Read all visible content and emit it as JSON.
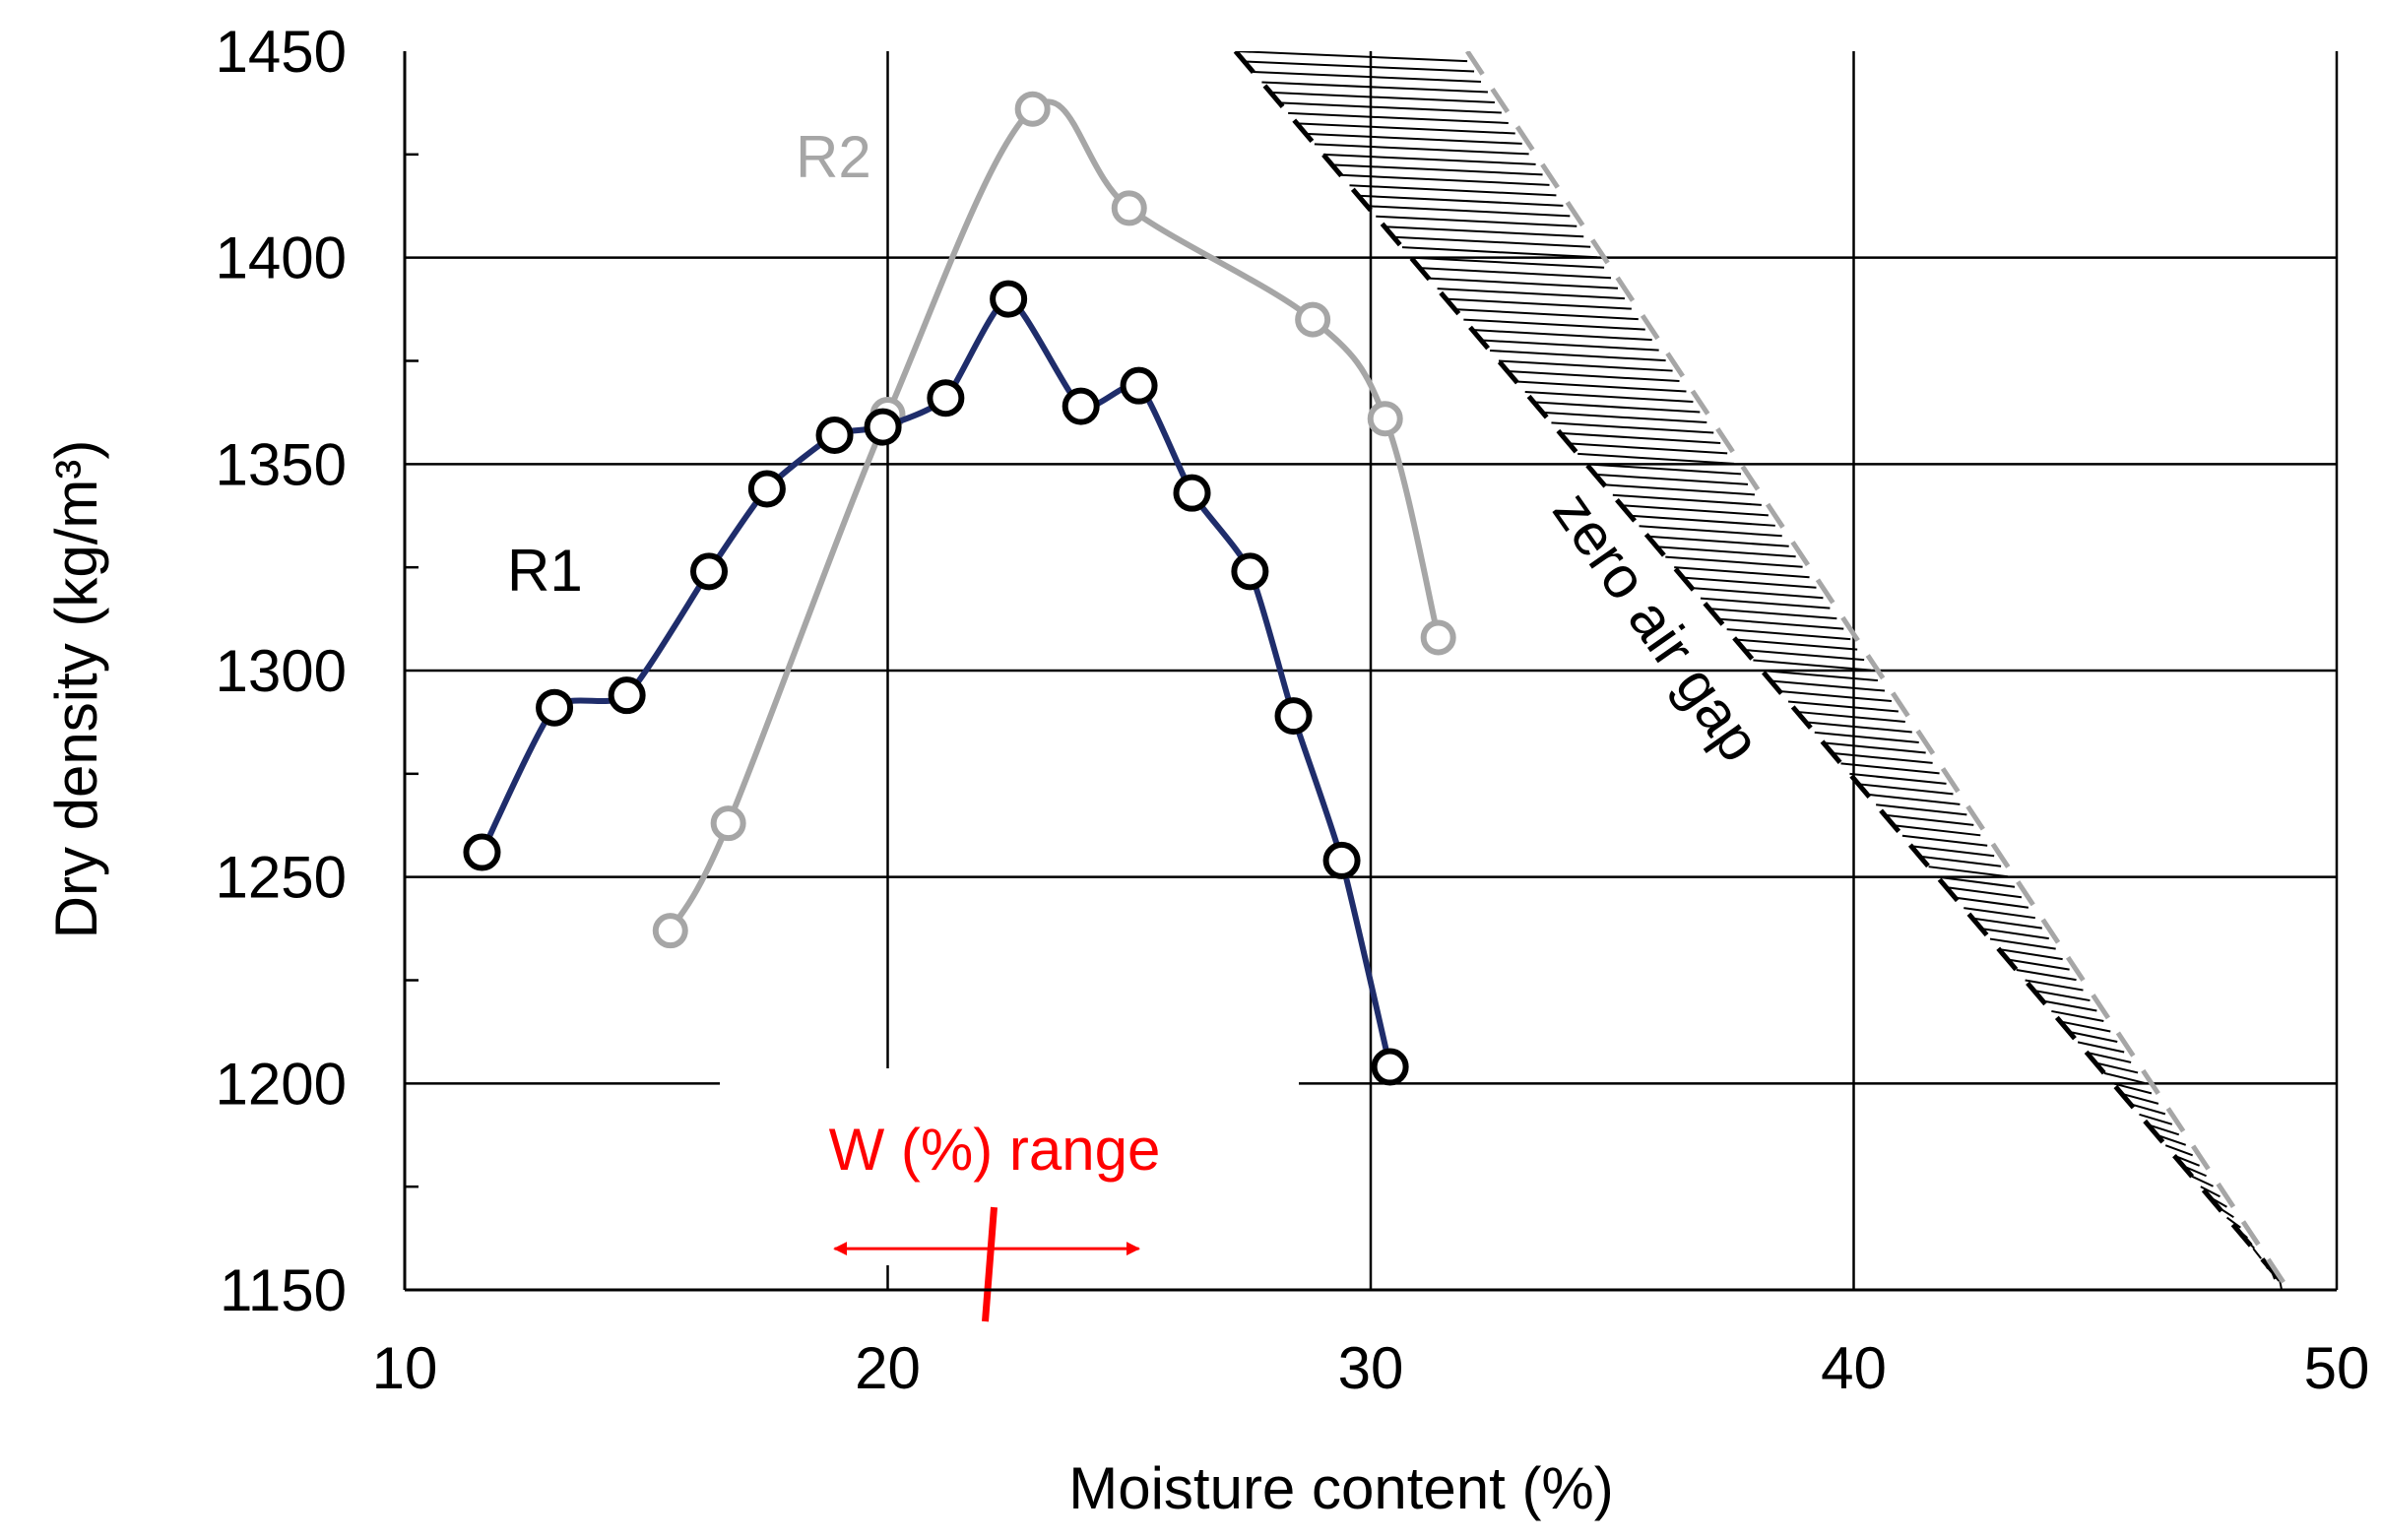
{
  "chart_data": {
    "type": "line",
    "title": "",
    "xlabel": "Moisture content (%)",
    "ylabel": "Dry density (kg/m³)",
    "xlim": [
      10,
      50
    ],
    "ylim": [
      1150,
      1450
    ],
    "xticks": [
      10,
      20,
      30,
      40,
      50
    ],
    "yticks": [
      1150,
      1200,
      1250,
      1300,
      1350,
      1400,
      1450
    ],
    "grid": true,
    "colors": {
      "r1_line": "#1f2d6b",
      "r2_line": "#a6a6a6",
      "marker_fill": "#ffffff",
      "marker_edge_r1": "#000000",
      "marker_edge_r2": "#a6a6a6",
      "annotation": "#ff0000",
      "grid": "#000000",
      "zero_air_boundary": "#000000",
      "zero_air_boundary_right": "#a6a6a6"
    },
    "series": [
      {
        "name": "R1",
        "x": [
          11.6,
          13.1,
          14.6,
          16.3,
          17.5,
          18.9,
          19.9,
          21.2,
          22.5,
          24.0,
          25.2,
          26.3,
          27.5,
          28.4,
          29.4,
          30.4
        ],
        "y": [
          1256,
          1291,
          1294,
          1324,
          1344,
          1357,
          1359,
          1366,
          1390,
          1364,
          1369,
          1343,
          1324,
          1289,
          1254,
          1204
        ]
      },
      {
        "name": "R2",
        "x": [
          15.5,
          16.7,
          20.0,
          23.0,
          25.0,
          28.8,
          30.3,
          31.4
        ],
        "y": [
          1237,
          1263,
          1362,
          1436,
          1412,
          1385,
          1361,
          1308
        ]
      }
    ],
    "zero_air_gap": {
      "label": "zero air gap",
      "lower_boundary": {
        "x": [
          27.2,
          49.0
        ],
        "y": [
          1450,
          1150
        ]
      },
      "upper_boundary": {
        "x": [
          32.0,
          49.0
        ],
        "y": [
          1450,
          1150
        ]
      }
    },
    "annotations": {
      "series_labels": {
        "r1": "R1",
        "r2": "R2"
      },
      "w_range": {
        "label": "W (%) range",
        "x_start": 18.9,
        "x_end": 25.2,
        "center": 22.1,
        "y": 1160
      }
    }
  }
}
